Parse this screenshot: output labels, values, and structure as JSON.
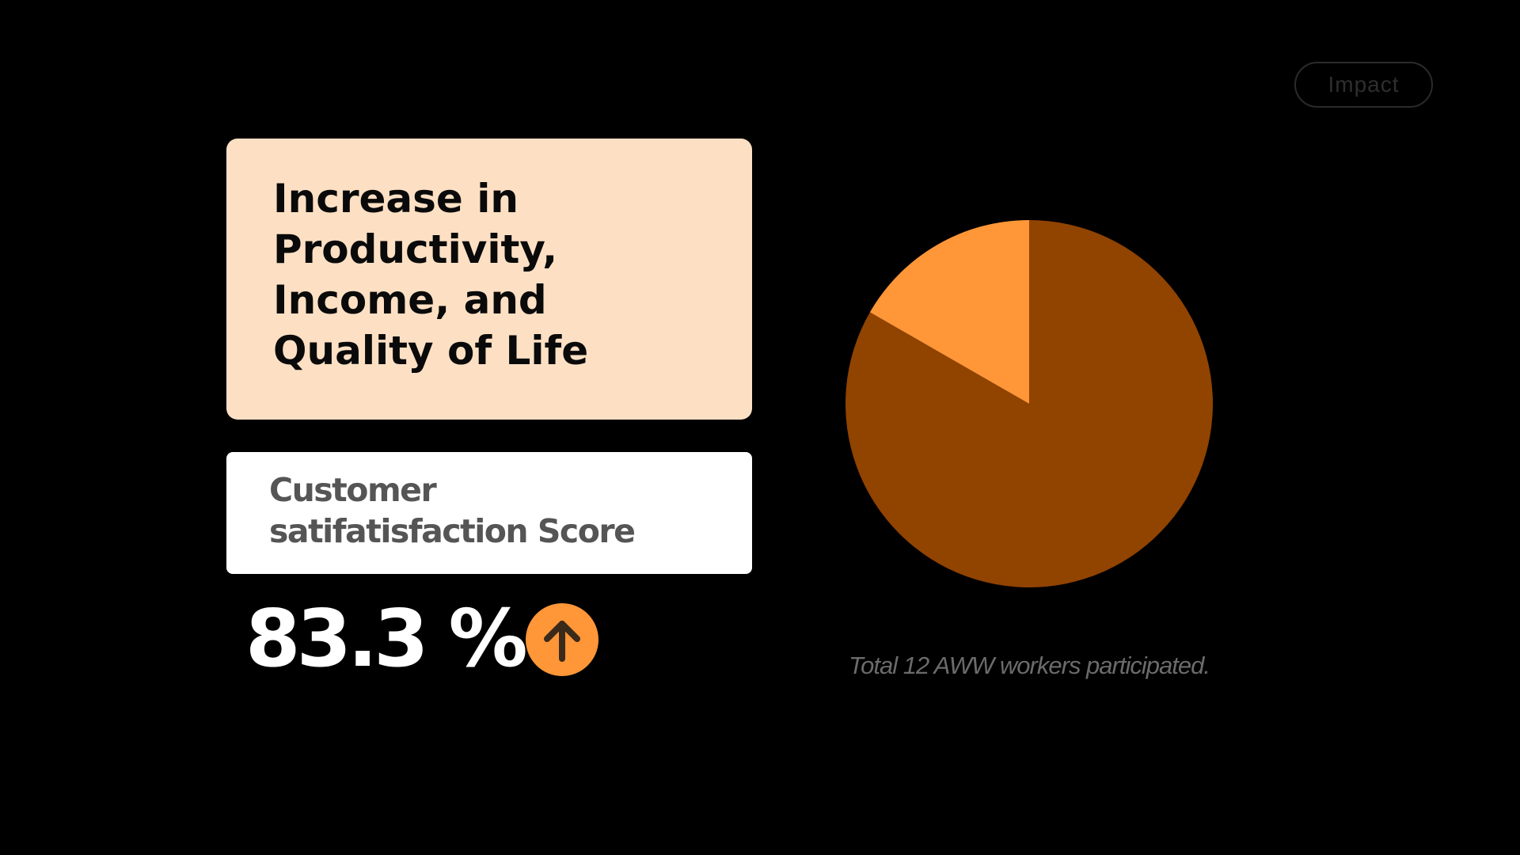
{
  "tag": {
    "label": "Impact"
  },
  "headline": {
    "text": "Increase in\nProductivity,\nIncome, and\nQuality of Life"
  },
  "metric": {
    "label": "Customer\nsatifatisfaction Score",
    "value": "83.3 %",
    "trend_icon": "arrow-up-icon",
    "badge_color": "#ff9637"
  },
  "chart_data": {
    "type": "pie",
    "values": [
      83.3,
      16.7
    ],
    "colors": [
      "#914300",
      "#ff9637"
    ],
    "start_angle_deg": 0,
    "direction": "clockwise"
  },
  "caption": {
    "text": "Total 12 AWW workers participated."
  },
  "colors": {
    "background": "#000000",
    "headline_card": "#fde0c4",
    "metric_card": "#ffffff",
    "accent": "#ff9637",
    "pie_major": "#914300"
  }
}
